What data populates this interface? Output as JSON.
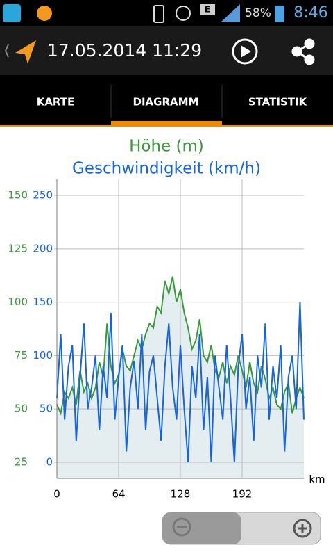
{
  "status": {
    "network": "E",
    "battery": "58%",
    "time": "8:46"
  },
  "header": {
    "title": "17.05.2014 11:29"
  },
  "tabs": [
    "KARTE",
    "DIAGRAMM",
    "STATISTIK"
  ],
  "chart_data": {
    "type": "line",
    "x": [
      0,
      4,
      8,
      12,
      16,
      20,
      24,
      28,
      32,
      36,
      40,
      44,
      48,
      52,
      56,
      60,
      64,
      68,
      72,
      76,
      80,
      84,
      88,
      92,
      96,
      100,
      104,
      108,
      112,
      116,
      120,
      124,
      128,
      132,
      136,
      140,
      144,
      148,
      152,
      156,
      160,
      164,
      168,
      172,
      176,
      180,
      184,
      188,
      192,
      196,
      200,
      204,
      208,
      212,
      216,
      220,
      224,
      228,
      232,
      236,
      240,
      244,
      248,
      252,
      256
    ],
    "series": [
      {
        "name": "Höhe (m)",
        "color": "#3a9a3a",
        "values": [
          52,
          48,
          58,
          55,
          60,
          52,
          68,
          58,
          62,
          55,
          60,
          72,
          65,
          90,
          70,
          62,
          66,
          78,
          70,
          68,
          75,
          82,
          78,
          85,
          90,
          88,
          98,
          95,
          110,
          104,
          112,
          100,
          106,
          95,
          88,
          78,
          82,
          92,
          75,
          72,
          80,
          68,
          65,
          72,
          62,
          70,
          66,
          75,
          68,
          60,
          72,
          62,
          58,
          70,
          64,
          55,
          60,
          52,
          50,
          58,
          62,
          48,
          55,
          60,
          55
        ]
      },
      {
        "name": "Geschwindigkeit (km/h)",
        "color": "#1565e0",
        "axis": "y2",
        "values": [
          60,
          120,
          40,
          90,
          110,
          20,
          80,
          130,
          50,
          70,
          100,
          30,
          90,
          60,
          140,
          40,
          80,
          110,
          10,
          70,
          95,
          50,
          120,
          30,
          85,
          100,
          60,
          20,
          90,
          130,
          70,
          40,
          110,
          50,
          0,
          90,
          60,
          120,
          30,
          80,
          0,
          100,
          70,
          40,
          110,
          60,
          0,
          90,
          120,
          50,
          80,
          20,
          100,
          70,
          130,
          40,
          90,
          60,
          110,
          10,
          80,
          100,
          50,
          150,
          40
        ]
      }
    ],
    "xlabel": "km",
    "xlim": [
      0,
      256
    ],
    "xticks": [
      0,
      64,
      128,
      192
    ],
    "ylim": [
      17.5,
      157.5
    ],
    "yticks": [
      25,
      50,
      75,
      100,
      125,
      150
    ],
    "y2lim": [
      -15,
      265
    ],
    "y2ticks": [
      0,
      50,
      100,
      150,
      200,
      250
    ],
    "grid": true
  }
}
